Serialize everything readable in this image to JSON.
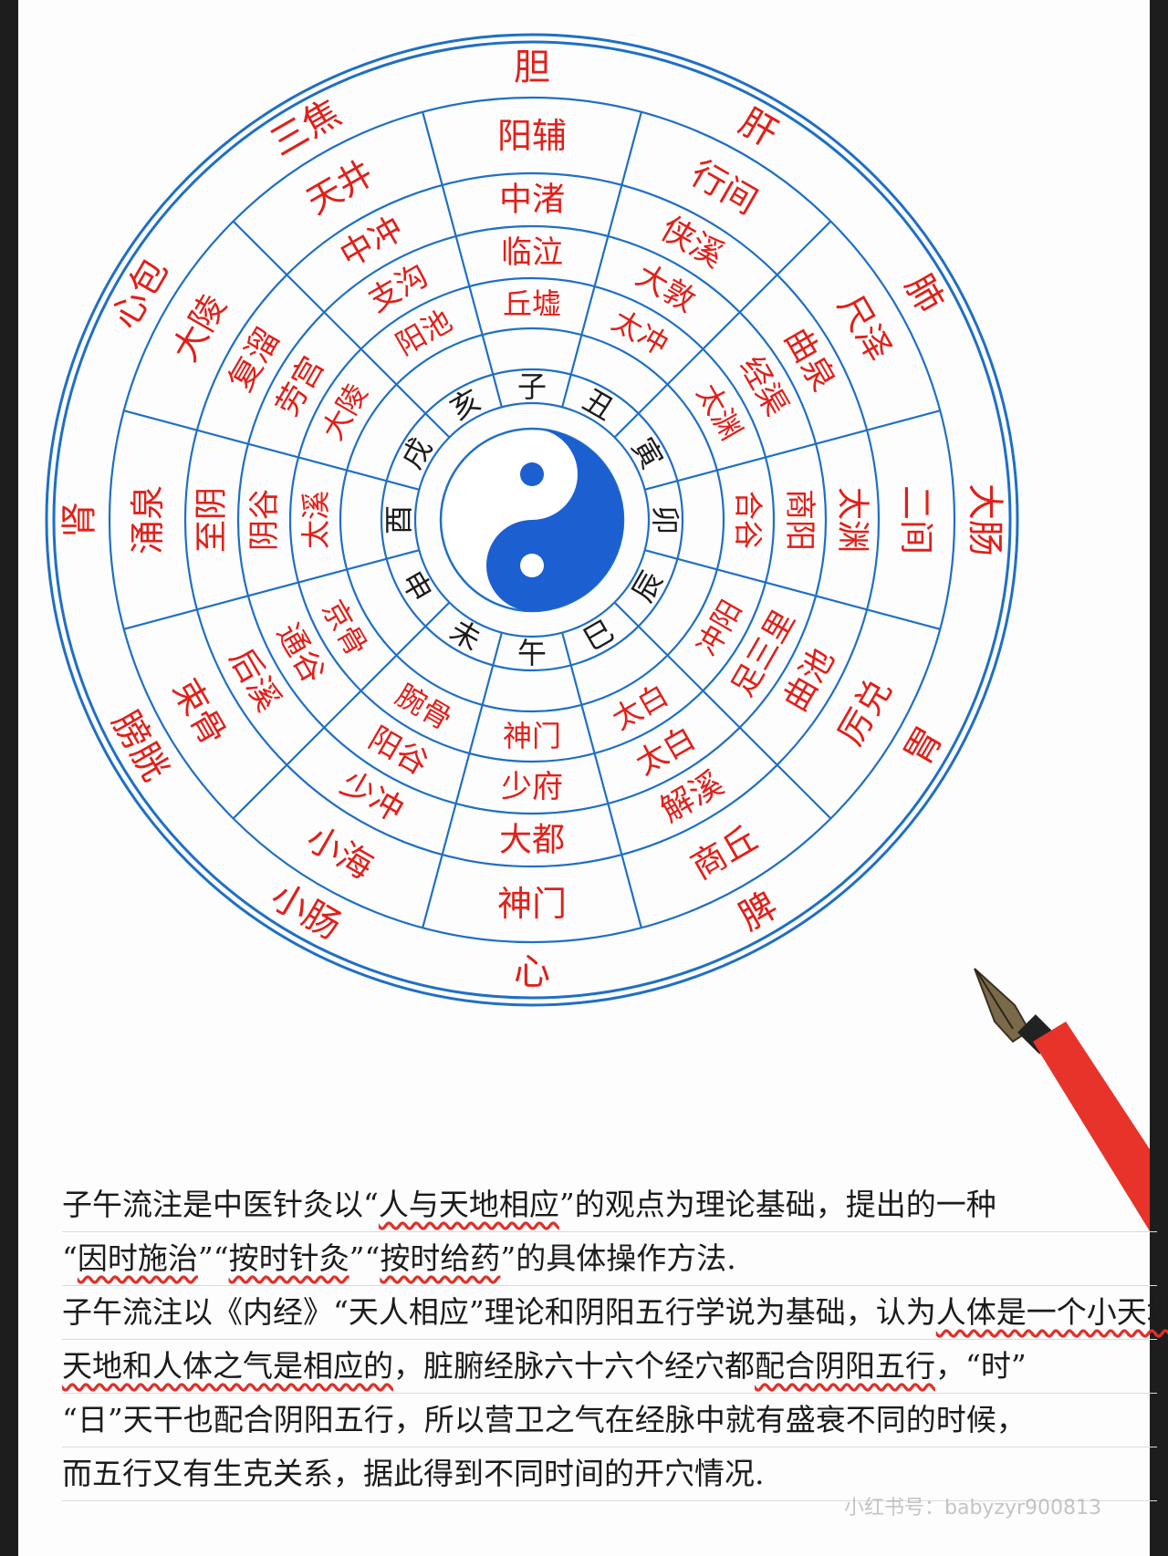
{
  "wheel": {
    "organs": [
      "胆",
      "肝",
      "肺",
      "大肠",
      "胃",
      "脾",
      "心",
      "小肠",
      "膀胱",
      "肾",
      "心包",
      "三焦"
    ],
    "ring_jing": [
      "阳辅",
      "行间",
      "尺泽",
      "二间",
      "厉兑",
      "商丘",
      "神门",
      "小海",
      "束骨",
      "涌泉",
      "大陵",
      "天井"
    ],
    "ring_he": [
      "中渚",
      "侠溪",
      "曲泉",
      "太渊",
      "曲池",
      "解溪",
      "大都",
      "少冲",
      "后溪",
      "至阴",
      "复溜",
      "中冲"
    ],
    "ring_ying": [
      "临泣",
      "大敦",
      "经渠",
      "商阳",
      "足三里",
      "太白",
      "少府",
      "阳谷",
      "通谷",
      "阴谷",
      "劳宫",
      "支沟"
    ],
    "ring_shu": [
      "丘墟",
      "太冲",
      "太渊",
      "合谷",
      "冲阳",
      "太白",
      "神门",
      "腕骨",
      "京骨",
      "太溪",
      "大陵",
      "阳池"
    ],
    "branches": [
      "子",
      "丑",
      "寅",
      "卯",
      "辰",
      "巳",
      "午",
      "未",
      "申",
      "酉",
      "戌",
      "亥"
    ]
  },
  "text_lines": [
    {
      "parts": [
        {
          "t": "子午流注是中医针灸以“",
          "hl": false
        },
        {
          "t": "人与天地相应",
          "hl": true
        },
        {
          "t": "”的观点为理论基础，提出的一种",
          "hl": false
        }
      ]
    },
    {
      "parts": [
        {
          "t": "“",
          "hl": false
        },
        {
          "t": "因时施治",
          "hl": true
        },
        {
          "t": "”“",
          "hl": false
        },
        {
          "t": "按时针灸",
          "hl": true
        },
        {
          "t": "”“",
          "hl": false
        },
        {
          "t": "按时给药",
          "hl": true
        },
        {
          "t": "”的具体操作方法.",
          "hl": false
        }
      ]
    },
    {
      "parts": [
        {
          "t": "子午流注以《内经》“天人相应”理论和阴阳五行学说为基础，认为",
          "hl": false
        },
        {
          "t": "人体是一个小天地",
          "hl": true
        },
        {
          "t": "，",
          "hl": false
        }
      ]
    },
    {
      "parts": [
        {
          "t": "天地和人体之气是相应的",
          "hl": true
        },
        {
          "t": "，脏腑经脉六十六个经穴都",
          "hl": false
        },
        {
          "t": "配合阴阳五行",
          "hl": true
        },
        {
          "t": "，“时”",
          "hl": false
        }
      ]
    },
    {
      "parts": [
        {
          "t": "“日”天干也配合阴阳五行，所以营卫之气在经脉中就有盛衰不同的时候，",
          "hl": false
        }
      ]
    },
    {
      "parts": [
        {
          "t": "而五行又有生克关系，据此得到不同时间的开穴情况.",
          "hl": false
        }
      ]
    }
  ],
  "watermark": "小红书号：babyzyr900813",
  "colors": {
    "blue": "#1f6fc5",
    "red": "#e0201a",
    "ink": "#1b1b1b",
    "yin_yang": "#1b5fd0"
  }
}
